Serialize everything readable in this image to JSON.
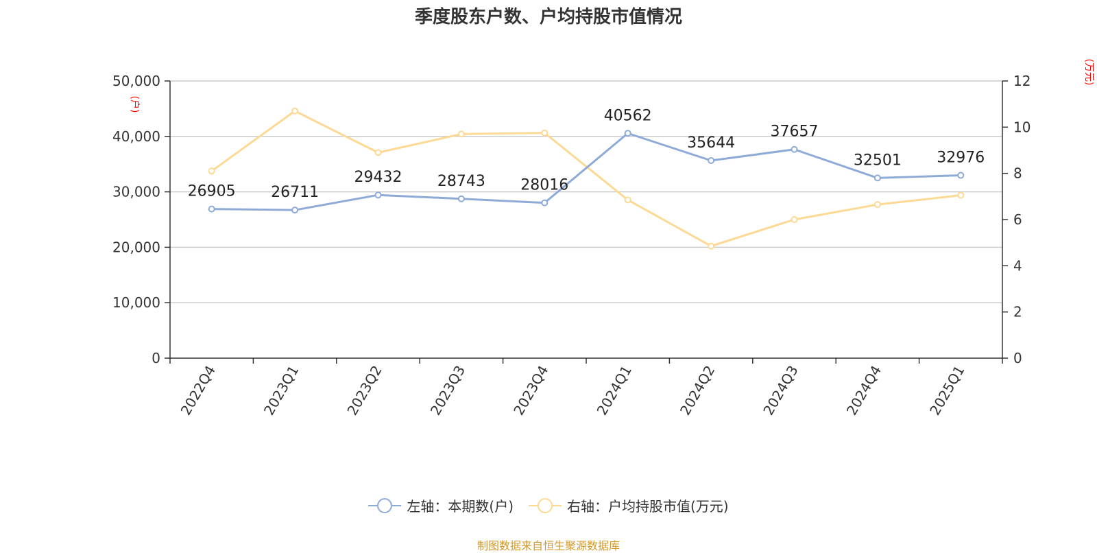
{
  "chart_data": {
    "type": "line",
    "title": "季度股东户数、户均持股市值情况",
    "categories": [
      "2022Q4",
      "2023Q1",
      "2023Q2",
      "2023Q3",
      "2023Q4",
      "2024Q1",
      "2024Q2",
      "2024Q3",
      "2024Q4",
      "2025Q1"
    ],
    "left_axis": {
      "unit": "(户)",
      "ylim": [
        0,
        50000
      ],
      "ticks": [
        "0",
        "10,000",
        "20,000",
        "30,000",
        "40,000",
        "50,000"
      ],
      "tick_values": [
        0,
        10000,
        20000,
        30000,
        40000,
        50000
      ]
    },
    "right_axis": {
      "unit": "(万元)",
      "ylim": [
        0,
        12
      ],
      "ticks": [
        "0",
        "2",
        "4",
        "6",
        "8",
        "10",
        "12"
      ],
      "tick_values": [
        0,
        2,
        4,
        6,
        8,
        10,
        12
      ]
    },
    "series": [
      {
        "name": "左轴：本期数(户)",
        "axis": "left",
        "color": "#8eabd8",
        "values": [
          26905,
          26711,
          29432,
          28743,
          28016,
          40562,
          35644,
          37657,
          32501,
          32976
        ],
        "labels": [
          "26905",
          "26711",
          "29432",
          "28743",
          "28016",
          "40562",
          "35644",
          "37657",
          "32501",
          "32976"
        ]
      },
      {
        "name": "右轴：户均持股市值(万元)",
        "axis": "right",
        "color": "#fcd994",
        "values": [
          8.1,
          10.7,
          8.9,
          9.7,
          9.75,
          6.85,
          4.85,
          6.0,
          6.65,
          7.05
        ]
      }
    ],
    "grid": true,
    "legend_position": "bottom"
  },
  "source_text": "制图数据来自恒生聚源数据库"
}
